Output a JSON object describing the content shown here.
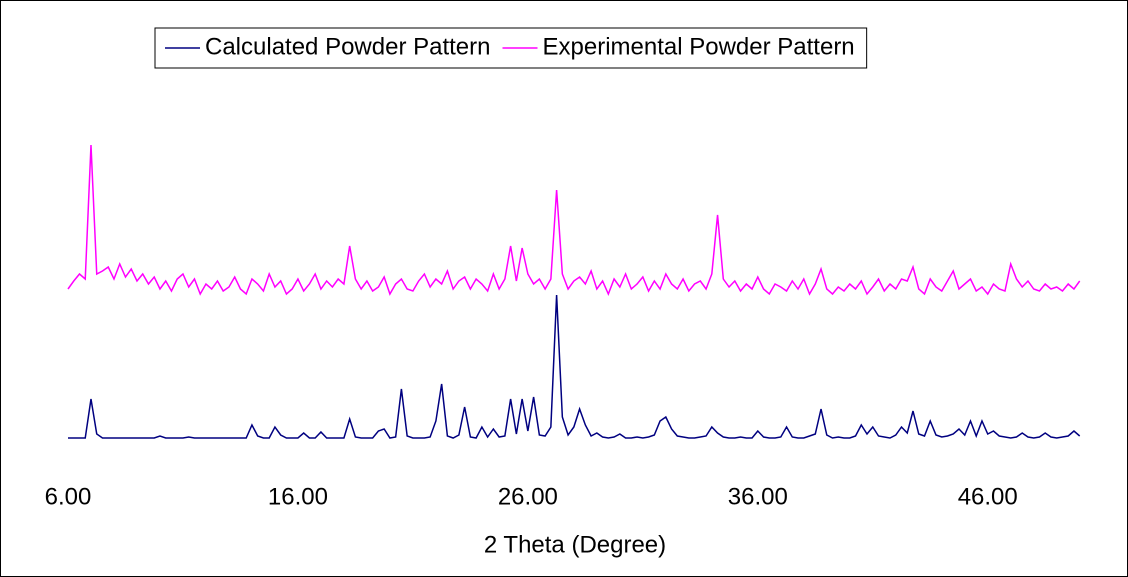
{
  "chart_data": {
    "type": "line",
    "xlabel": "2 Theta (Degree)",
    "legend": "top",
    "xlim": [
      6,
      50.1
    ],
    "xticks": [
      {
        "value": 6,
        "label": "6.00"
      },
      {
        "value": 16,
        "label": "16.00"
      },
      {
        "value": 26,
        "label": "26.00"
      },
      {
        "value": 36,
        "label": "36.00"
      },
      {
        "value": 46,
        "label": "46.00"
      }
    ],
    "ylim": [
      0,
      300
    ],
    "x": [
      6,
      6.25,
      6.5,
      6.75,
      7,
      7.25,
      7.5,
      7.75,
      8,
      8.25,
      8.5,
      8.75,
      9,
      9.25,
      9.5,
      9.75,
      10,
      10.25,
      10.5,
      10.75,
      11,
      11.25,
      11.5,
      11.75,
      12,
      12.25,
      12.5,
      12.75,
      13,
      13.25,
      13.5,
      13.75,
      14,
      14.25,
      14.5,
      14.75,
      15,
      15.25,
      15.5,
      15.75,
      16,
      16.25,
      16.5,
      16.75,
      17,
      17.25,
      17.5,
      17.75,
      18,
      18.25,
      18.5,
      18.75,
      19,
      19.25,
      19.5,
      19.75,
      20,
      20.25,
      20.5,
      20.75,
      21,
      21.25,
      21.5,
      21.75,
      22,
      22.25,
      22.5,
      22.75,
      23,
      23.25,
      23.5,
      23.75,
      24,
      24.25,
      24.5,
      24.75,
      25,
      25.25,
      25.5,
      25.75,
      26,
      26.25,
      26.5,
      26.75,
      27,
      27.25,
      27.5,
      27.75,
      28,
      28.25,
      28.5,
      28.75,
      29,
      29.25,
      29.5,
      29.75,
      30,
      30.25,
      30.5,
      30.75,
      31,
      31.25,
      31.5,
      31.75,
      32,
      32.25,
      32.5,
      32.75,
      33,
      33.25,
      33.5,
      33.75,
      34,
      34.25,
      34.5,
      34.75,
      35,
      35.25,
      35.5,
      35.75,
      36,
      36.25,
      36.5,
      36.75,
      37,
      37.25,
      37.5,
      37.75,
      38,
      38.25,
      38.5,
      38.75,
      39,
      39.25,
      39.5,
      39.75,
      40,
      40.25,
      40.5,
      40.75,
      41,
      41.25,
      41.5,
      41.75,
      42,
      42.25,
      42.5,
      42.75,
      43,
      43.25,
      43.5,
      43.75,
      44,
      44.25,
      44.5,
      44.75,
      45,
      45.25,
      45.5,
      45.75,
      46,
      46.25,
      46.5,
      46.75,
      47,
      47.25,
      47.5,
      47.75,
      48,
      48.25,
      48.5,
      48.75,
      49,
      49.25,
      49.5,
      49.75,
      50
    ],
    "series": [
      {
        "name": "Calculated Powder Pattern",
        "color": "#000080",
        "values": [
          1,
          1,
          1,
          1,
          40,
          5,
          1,
          1,
          1,
          1,
          1,
          1,
          1,
          1,
          1,
          1,
          3,
          1,
          1,
          1,
          1,
          2,
          1,
          1,
          1,
          1,
          1,
          1,
          1,
          1,
          1,
          1,
          14,
          3,
          1,
          1,
          12,
          4,
          1,
          1,
          1,
          6,
          1,
          1,
          7,
          1,
          1,
          1,
          1,
          20,
          2,
          1,
          1,
          1,
          8,
          10,
          1,
          2,
          50,
          3,
          1,
          1,
          1,
          2,
          18,
          55,
          3,
          1,
          4,
          32,
          2,
          1,
          12,
          2,
          10,
          2,
          3,
          40,
          5,
          40,
          8,
          42,
          4,
          3,
          12,
          144,
          22,
          4,
          12,
          30,
          14,
          3,
          6,
          2,
          1,
          2,
          5,
          1,
          1,
          2,
          1,
          2,
          4,
          18,
          22,
          10,
          3,
          2,
          1,
          1,
          2,
          3,
          12,
          6,
          2,
          1,
          1,
          2,
          1,
          1,
          8,
          2,
          1,
          1,
          2,
          12,
          2,
          1,
          1,
          3,
          5,
          30,
          4,
          1,
          2,
          1,
          1,
          3,
          14,
          5,
          12,
          3,
          2,
          1,
          4,
          12,
          6,
          28,
          5,
          3,
          18,
          4,
          2,
          3,
          5,
          10,
          4,
          18,
          3,
          18,
          5,
          8,
          3,
          2,
          1,
          2,
          6,
          2,
          1,
          2,
          6,
          2,
          1,
          2,
          3,
          8,
          3
        ]
      },
      {
        "name": "Experimental Powder Pattern",
        "color": "#ff00ff",
        "values": [
          150,
          158,
          165,
          160,
          294,
          165,
          168,
          172,
          160,
          175,
          162,
          170,
          158,
          165,
          155,
          162,
          150,
          158,
          148,
          160,
          165,
          152,
          160,
          145,
          155,
          150,
          158,
          148,
          152,
          162,
          150,
          145,
          160,
          155,
          148,
          165,
          152,
          158,
          145,
          150,
          160,
          148,
          155,
          165,
          150,
          158,
          152,
          160,
          155,
          193,
          160,
          150,
          158,
          148,
          152,
          162,
          145,
          155,
          160,
          150,
          148,
          158,
          165,
          152,
          160,
          155,
          168,
          150,
          158,
          162,
          150,
          160,
          155,
          148,
          165,
          150,
          160,
          193,
          158,
          191,
          165,
          155,
          160,
          150,
          160,
          249,
          165,
          150,
          158,
          162,
          155,
          168,
          150,
          158,
          145,
          160,
          152,
          165,
          150,
          155,
          162,
          148,
          158,
          150,
          165,
          155,
          150,
          160,
          148,
          155,
          158,
          150,
          165,
          224,
          160,
          152,
          158,
          148,
          155,
          150,
          162,
          150,
          145,
          155,
          152,
          148,
          158,
          150,
          160,
          145,
          155,
          170,
          150,
          145,
          152,
          148,
          155,
          150,
          158,
          145,
          152,
          160,
          148,
          155,
          150,
          160,
          158,
          172,
          150,
          145,
          160,
          152,
          148,
          158,
          168,
          150,
          155,
          160,
          148,
          152,
          145,
          155,
          150,
          148,
          175,
          160,
          152,
          158,
          150,
          148,
          155,
          150,
          152,
          148,
          155,
          150,
          158
        ]
      }
    ]
  }
}
